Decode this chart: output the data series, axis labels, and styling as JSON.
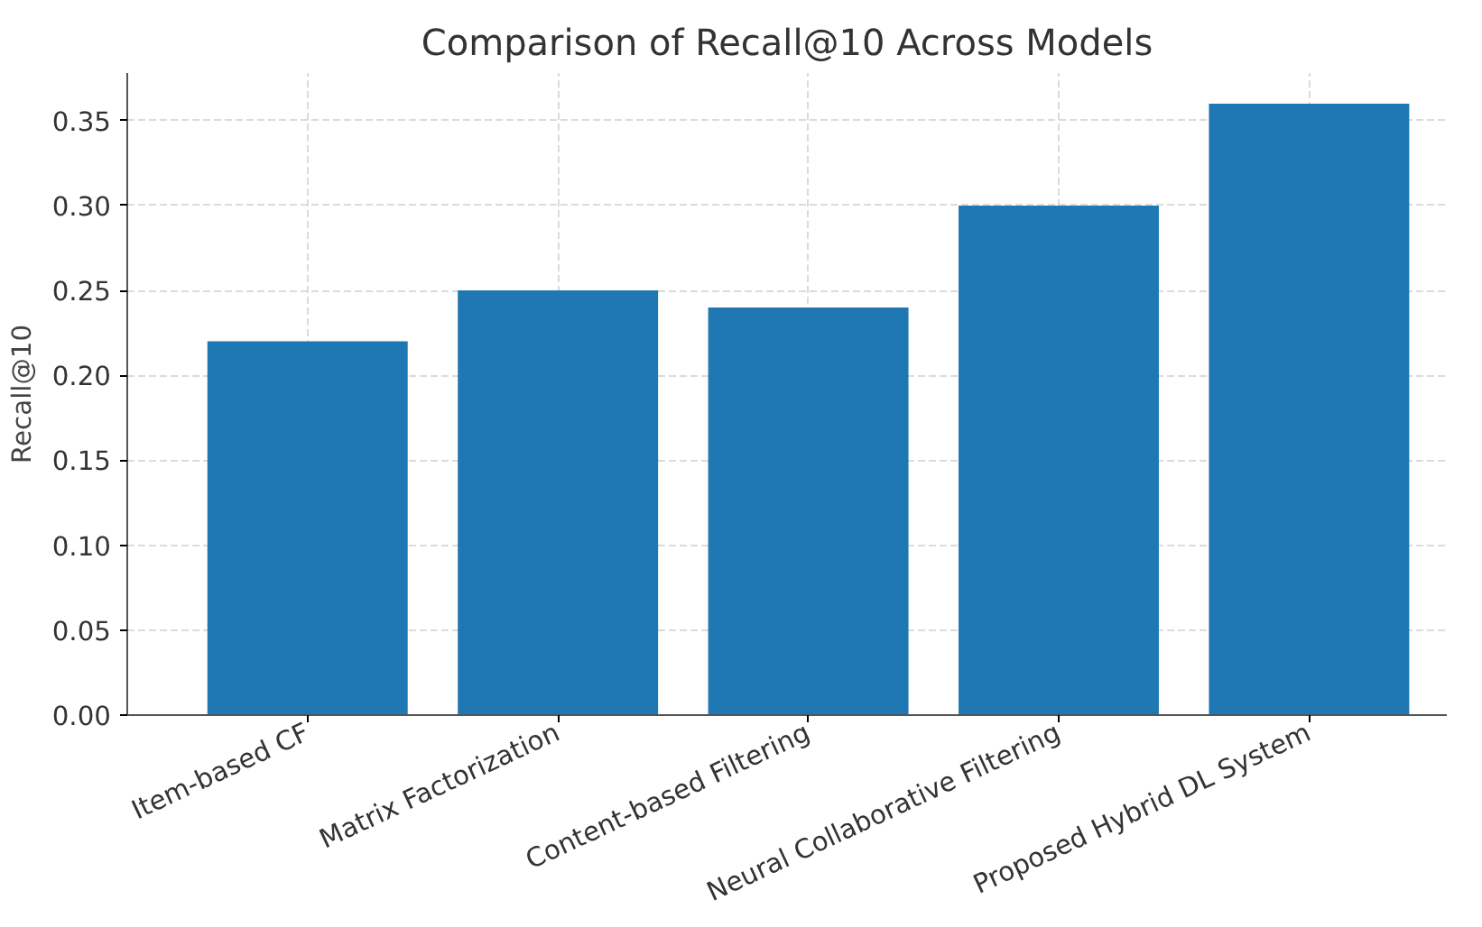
{
  "chart_data": {
    "type": "bar",
    "title": "Comparison of Recall@10 Across Models",
    "ylabel": "Recall@10",
    "categories": [
      "Item-based CF",
      "Matrix Factorization",
      "Content-based Filtering",
      "Neural Collaborative Filtering",
      "Proposed Hybrid DL System"
    ],
    "values": [
      0.22,
      0.25,
      0.24,
      0.3,
      0.36
    ],
    "color": "#1f77b4",
    "ylim": [
      0,
      0.378
    ],
    "yticks": [
      {
        "value": 0,
        "label": "0.00"
      },
      {
        "value": 0.05,
        "label": "0.05"
      },
      {
        "value": 0.1,
        "label": "0.10"
      },
      {
        "value": 0.15,
        "label": "0.15"
      },
      {
        "value": 0.2,
        "label": "0.20"
      },
      {
        "value": 0.25,
        "label": "0.25"
      },
      {
        "value": 0.3,
        "label": "0.30"
      },
      {
        "value": 0.35,
        "label": "0.35"
      }
    ],
    "grid": true
  }
}
